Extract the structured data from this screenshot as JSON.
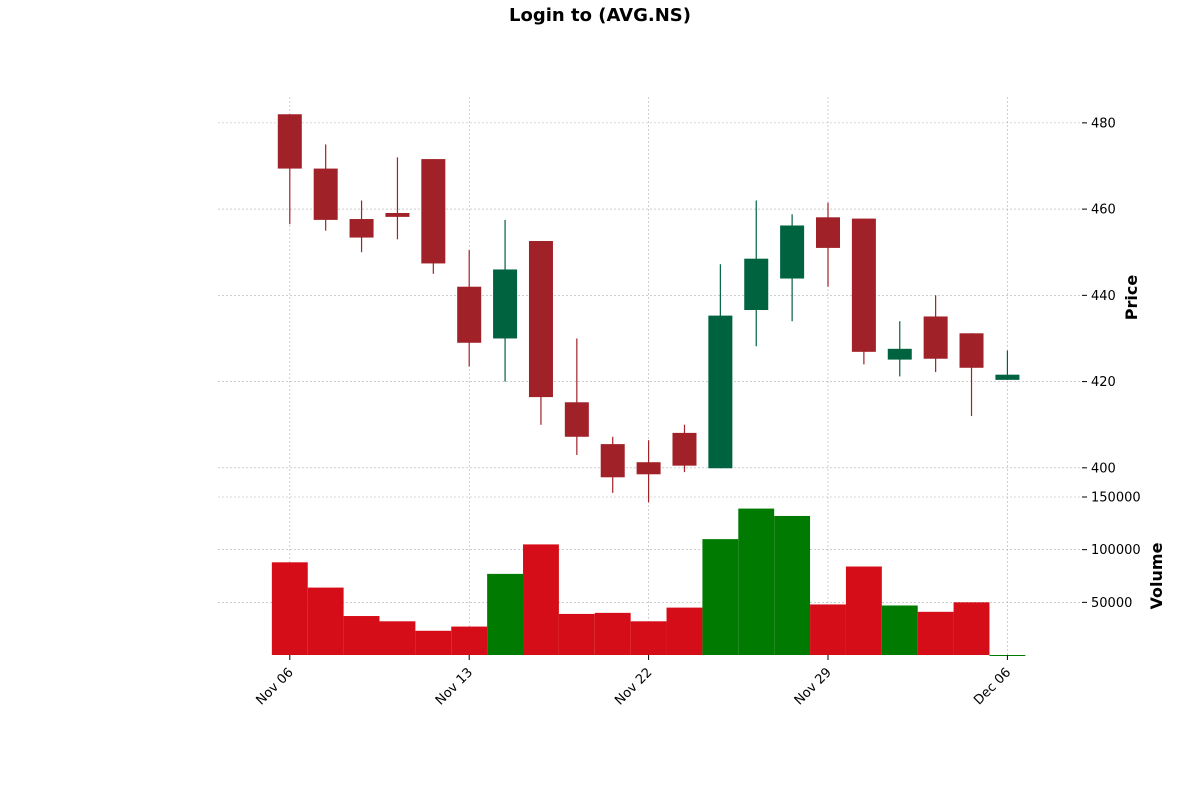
{
  "title": "Login to (AVG.NS)",
  "chart_data": {
    "type": "candlestick",
    "title": "Login to (AVG.NS)",
    "colors": {
      "up": "#006340",
      "down": "#a02128",
      "volume_up": "#007a00",
      "volume_down": "#d50d18",
      "grid": "#b0b0b0"
    },
    "price_axis": {
      "label": "Price",
      "ylim": [
        393,
        486
      ],
      "ticks": [
        "400",
        "420",
        "440",
        "460",
        "480"
      ],
      "side": "right"
    },
    "volume_axis": {
      "label": "Volume",
      "ylim": [
        0,
        150000
      ],
      "ticks": [
        "50000",
        "100000",
        "150000"
      ],
      "side": "right"
    },
    "x_ticks": [
      {
        "label": "Nov 06",
        "index": 0
      },
      {
        "label": "Nov 13",
        "index": 5
      },
      {
        "label": "Nov 22",
        "index": 10
      },
      {
        "label": "Nov 29",
        "index": 15
      },
      {
        "label": "Dec 06",
        "index": 20
      }
    ],
    "grid": true,
    "candles": [
      {
        "open": 482.0,
        "high": 482.0,
        "low": 456.5,
        "close": 469.4,
        "volume": 88000
      },
      {
        "open": 469.4,
        "high": 475.0,
        "low": 455.0,
        "close": 457.5,
        "volume": 64000
      },
      {
        "open": 457.7,
        "high": 462.0,
        "low": 450.0,
        "close": 453.4,
        "volume": 37000
      },
      {
        "open": 459.1,
        "high": 472.0,
        "low": 453.0,
        "close": 458.2,
        "volume": 32000
      },
      {
        "open": 471.6,
        "high": 471.6,
        "low": 445.0,
        "close": 447.4,
        "volume": 23000
      },
      {
        "open": 442.0,
        "high": 450.5,
        "low": 423.5,
        "close": 429.0,
        "volume": 27000
      },
      {
        "open": 430.0,
        "high": 457.5,
        "low": 420.0,
        "close": 446.0,
        "volume": 77000
      },
      {
        "open": 452.6,
        "high": 452.6,
        "low": 410.0,
        "close": 416.4,
        "volume": 105000
      },
      {
        "open": 415.2,
        "high": 430.0,
        "low": 403.0,
        "close": 407.2,
        "volume": 39000
      },
      {
        "open": 405.5,
        "high": 407.2,
        "low": 394.2,
        "close": 397.8,
        "volume": 40000
      },
      {
        "open": 401.3,
        "high": 406.4,
        "low": 392.0,
        "close": 398.5,
        "volume": 32000
      },
      {
        "open": 408.1,
        "high": 410.0,
        "low": 399.0,
        "close": 400.5,
        "volume": 45000
      },
      {
        "open": 399.9,
        "high": 447.2,
        "low": 399.9,
        "close": 435.3,
        "volume": 110000
      },
      {
        "open": 436.6,
        "high": 462.0,
        "low": 428.2,
        "close": 448.5,
        "volume": 139000
      },
      {
        "open": 443.9,
        "high": 458.8,
        "low": 434.0,
        "close": 456.2,
        "volume": 132000
      },
      {
        "open": 458.1,
        "high": 461.5,
        "low": 442.0,
        "close": 451.0,
        "volume": 48000
      },
      {
        "open": 457.8,
        "high": 457.8,
        "low": 424.0,
        "close": 426.9,
        "volume": 84000
      },
      {
        "open": 425.1,
        "high": 434.0,
        "low": 421.2,
        "close": 427.6,
        "volume": 47000
      },
      {
        "open": 435.1,
        "high": 440.0,
        "low": 422.2,
        "close": 425.3,
        "volume": 41000
      },
      {
        "open": 431.2,
        "high": 431.2,
        "low": 412.0,
        "close": 423.2,
        "volume": 50000
      },
      {
        "open": 420.4,
        "high": 427.2,
        "low": 420.4,
        "close": 421.6,
        "volume": 0
      }
    ]
  }
}
